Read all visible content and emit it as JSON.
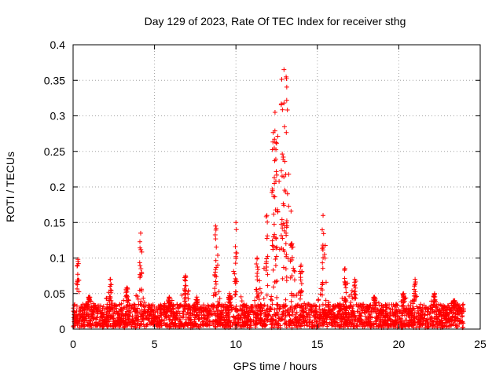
{
  "chart_data": {
    "type": "scatter",
    "title": "Day 129 of 2023, Rate Of TEC Index for receiver sthg",
    "xlabel": "GPS time / hours",
    "ylabel": "ROTI / TECUs",
    "xlim": [
      0,
      25
    ],
    "ylim": [
      0,
      0.4
    ],
    "x_ticks": [
      0,
      5,
      10,
      15,
      20,
      25
    ],
    "x_tick_labels": [
      "0",
      "5",
      "10",
      "15",
      "20",
      "25"
    ],
    "y_ticks": [
      0,
      0.05,
      0.1,
      0.15,
      0.2,
      0.25,
      0.3,
      0.35,
      0.4
    ],
    "y_tick_labels": [
      "0",
      "0.05",
      "0.1",
      "0.15",
      "0.2",
      "0.25",
      "0.3",
      "0.35",
      "0.4"
    ],
    "grid": true,
    "marker": "+",
    "color": "#ff0000",
    "data_range_x": [
      0,
      24
    ],
    "baseline_band": [
      0.005,
      0.035
    ],
    "peaks": [
      {
        "x": 0.3,
        "y": 0.098
      },
      {
        "x": 1.0,
        "y": 0.045
      },
      {
        "x": 2.3,
        "y": 0.07
      },
      {
        "x": 3.3,
        "y": 0.058
      },
      {
        "x": 4.15,
        "y": 0.135
      },
      {
        "x": 5.9,
        "y": 0.045
      },
      {
        "x": 6.9,
        "y": 0.075
      },
      {
        "x": 7.6,
        "y": 0.045
      },
      {
        "x": 8.75,
        "y": 0.145
      },
      {
        "x": 9.6,
        "y": 0.05
      },
      {
        "x": 10.0,
        "y": 0.15
      },
      {
        "x": 11.3,
        "y": 0.1
      },
      {
        "x": 11.9,
        "y": 0.16
      },
      {
        "x": 12.4,
        "y": 0.305
      },
      {
        "x": 12.95,
        "y": 0.365
      },
      {
        "x": 13.4,
        "y": 0.12
      },
      {
        "x": 14.0,
        "y": 0.09
      },
      {
        "x": 15.35,
        "y": 0.16
      },
      {
        "x": 16.7,
        "y": 0.085
      },
      {
        "x": 17.3,
        "y": 0.07
      },
      {
        "x": 18.5,
        "y": 0.045
      },
      {
        "x": 20.3,
        "y": 0.05
      },
      {
        "x": 21.0,
        "y": 0.07
      },
      {
        "x": 22.2,
        "y": 0.05
      },
      {
        "x": 23.4,
        "y": 0.04
      }
    ]
  }
}
